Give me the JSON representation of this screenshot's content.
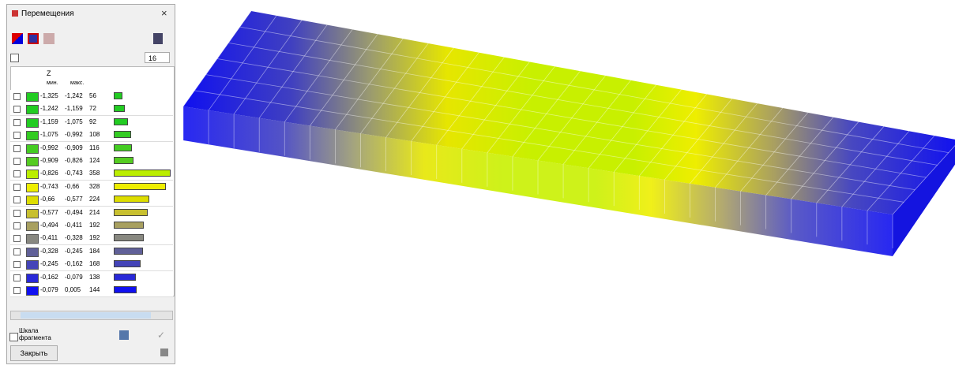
{
  "window": {
    "title": "Перемещения",
    "levels": "16",
    "axis": "Z",
    "col_min": "мин.",
    "col_max": "макс.",
    "fragment_scale": "Шкала фрагмента",
    "close": "Закрыть"
  },
  "rows": [
    {
      "min": "-1,325",
      "max": "-1,242",
      "count": 56,
      "color": "#22cc22"
    },
    {
      "min": "-1,242",
      "max": "-1,159",
      "count": 72,
      "color": "#22cc22"
    },
    {
      "min": "-1,159",
      "max": "-1,075",
      "count": 92,
      "color": "#22cc22"
    },
    {
      "min": "-1,075",
      "max": "-0,992",
      "count": 108,
      "color": "#33cc22"
    },
    {
      "min": "-0,992",
      "max": "-0,909",
      "count": 116,
      "color": "#44cc22"
    },
    {
      "min": "-0,909",
      "max": "-0,826",
      "count": 124,
      "color": "#55cc22"
    },
    {
      "min": "-0,826",
      "max": "-0,743",
      "count": 358,
      "color": "#bbee00"
    },
    {
      "min": "-0,743",
      "max": "-0,66",
      "count": 328,
      "color": "#eeee00"
    },
    {
      "min": "-0,66",
      "max": "-0,577",
      "count": 224,
      "color": "#dddd00"
    },
    {
      "min": "-0,577",
      "max": "-0,494",
      "count": 214,
      "color": "#c8c030"
    },
    {
      "min": "-0,494",
      "max": "-0,411",
      "count": 192,
      "color": "#a8a060"
    },
    {
      "min": "-0,411",
      "max": "-0,328",
      "count": 192,
      "color": "#888880"
    },
    {
      "min": "-0,328",
      "max": "-0,245",
      "count": 184,
      "color": "#606098"
    },
    {
      "min": "-0,245",
      "max": "-0,162",
      "count": 168,
      "color": "#4444b8"
    },
    {
      "min": "-0,162",
      "max": "-0,079",
      "count": 138,
      "color": "#2828d8"
    },
    {
      "min": "-0,079",
      "max": "0,005",
      "count": 144,
      "color": "#1010f0"
    }
  ]
}
